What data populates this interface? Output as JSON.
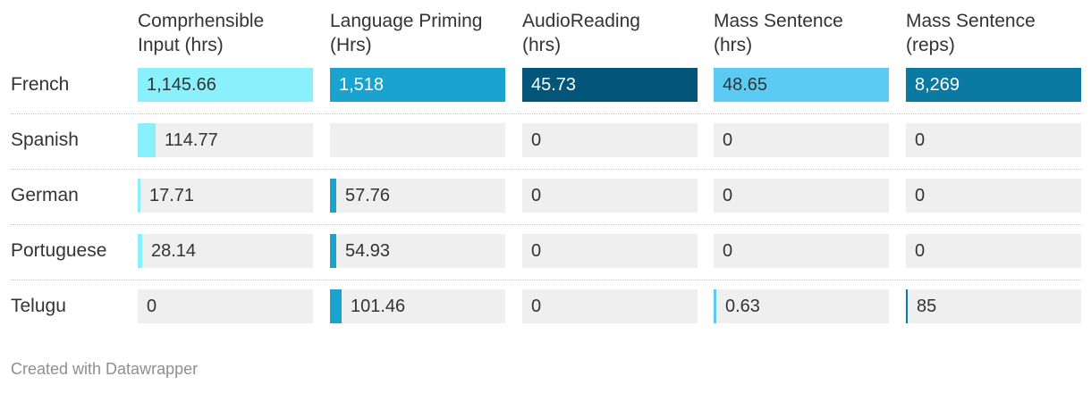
{
  "chart_data": {
    "type": "table",
    "columns": [
      {
        "label_lines": [
          "Comprhensible",
          "Input (hrs)"
        ],
        "color": "#8af0fc",
        "max": 1145.66
      },
      {
        "label_lines": [
          "Language Priming",
          "(Hrs)"
        ],
        "color": "#1aa3cf",
        "max": 1518
      },
      {
        "label_lines": [
          "AudioReading",
          "(hrs)"
        ],
        "color": "#03567a",
        "max": 45.73
      },
      {
        "label_lines": [
          "Mass Sentence",
          "(hrs)"
        ],
        "color": "#5ccbf3",
        "max": 48.65
      },
      {
        "label_lines": [
          "Mass Sentence",
          "(reps)"
        ],
        "color": "#0b7aa3",
        "max": 8269
      }
    ],
    "rows": [
      {
        "label": "French",
        "values": [
          1145.66,
          1518,
          45.73,
          48.65,
          8269
        ],
        "display": [
          "1,145.66",
          "1,518",
          "45.73",
          "48.65",
          "8,269"
        ]
      },
      {
        "label": "Spanish",
        "values": [
          114.77,
          null,
          0,
          0,
          0
        ],
        "display": [
          "114.77",
          "",
          "0",
          "0",
          "0"
        ]
      },
      {
        "label": "German",
        "values": [
          17.71,
          57.76,
          0,
          0,
          0
        ],
        "display": [
          "17.71",
          "57.76",
          "0",
          "0",
          "0"
        ]
      },
      {
        "label": "Portuguese",
        "values": [
          28.14,
          54.93,
          0,
          0,
          0
        ],
        "display": [
          "28.14",
          "54.93",
          "0",
          "0",
          "0"
        ]
      },
      {
        "label": "Telugu",
        "values": [
          0,
          101.46,
          0,
          0.63,
          85
        ],
        "display": [
          "0",
          "101.46",
          "0",
          "0.63",
          "85"
        ]
      }
    ]
  },
  "footer": "Created with Datawrapper"
}
